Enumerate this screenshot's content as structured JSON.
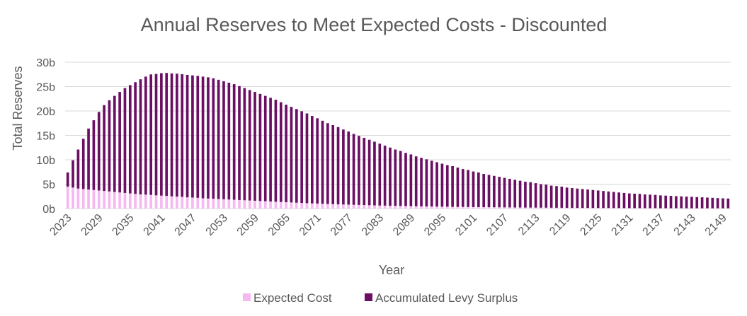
{
  "chart_data": {
    "type": "bar",
    "stacked": true,
    "title": "Annual Reserves to Meet Expected Costs - Discounted",
    "xlabel": "Year",
    "ylabel": "Total Reserves",
    "ylim": [
      0,
      30
    ],
    "y_unit": "b",
    "yticks": [
      "0b",
      "5b",
      "10b",
      "15b",
      "20b",
      "25b",
      "30b"
    ],
    "x_start": 2023,
    "x_end": 2150,
    "xticks": [
      "2023",
      "2029",
      "2035",
      "2041",
      "2047",
      "2053",
      "2059",
      "2065",
      "2071",
      "2077",
      "2083",
      "2089",
      "2095",
      "2101",
      "2107",
      "2113",
      "2119",
      "2125",
      "2131",
      "2137",
      "2143",
      "2149"
    ],
    "grid": true,
    "legend_position": "bottom",
    "series": [
      {
        "name": "Expected Cost",
        "color": "#f5b8f0",
        "values": [
          4.5,
          4.3,
          4.1,
          4.0,
          3.9,
          3.8,
          3.7,
          3.6,
          3.5,
          3.4,
          3.3,
          3.2,
          3.1,
          3.0,
          2.9,
          2.85,
          2.8,
          2.7,
          2.65,
          2.6,
          2.5,
          2.45,
          2.4,
          2.3,
          2.25,
          2.2,
          2.1,
          2.05,
          2.0,
          1.95,
          1.9,
          1.85,
          1.8,
          1.75,
          1.7,
          1.65,
          1.6,
          1.55,
          1.5,
          1.45,
          1.4,
          1.35,
          1.3,
          1.25,
          1.2,
          1.15,
          1.1,
          1.06,
          1.02,
          0.98,
          0.94,
          0.9,
          0.86,
          0.83,
          0.8,
          0.77,
          0.74,
          0.71,
          0.68,
          0.65,
          0.62,
          0.6,
          0.57,
          0.55,
          0.53,
          0.51,
          0.49,
          0.47,
          0.45,
          0.43,
          0.41,
          0.4,
          0.38,
          0.37,
          0.35,
          0.34,
          0.33,
          0.31,
          0.3,
          0.29,
          0.28,
          0.27,
          0.26,
          0.25,
          0.24,
          0.23,
          0.22,
          0.21,
          0.2,
          0.2,
          0.19,
          0.18,
          0.18,
          0.17,
          0.16,
          0.16,
          0.15,
          0.15,
          0.14,
          0.14,
          0.13,
          0.13,
          0.12,
          0.12,
          0.12,
          0.11,
          0.11,
          0.1,
          0.1,
          0.1,
          0.1,
          0.09,
          0.09,
          0.09,
          0.08,
          0.08,
          0.08,
          0.08,
          0.08,
          0.07,
          0.07,
          0.07,
          0.07,
          0.07,
          0.06,
          0.06,
          0.06,
          0.06
        ]
      },
      {
        "name": "Accumulated Levy Surplus",
        "color": "#6a0f63",
        "values": [
          2.9,
          5.6,
          8.0,
          10.3,
          12.5,
          14.3,
          16.1,
          17.6,
          18.7,
          19.7,
          20.6,
          21.5,
          22.2,
          22.9,
          23.6,
          24.2,
          24.7,
          24.9,
          25.1,
          25.2,
          25.2,
          25.2,
          25.15,
          25.1,
          25.05,
          25.0,
          24.95,
          24.85,
          24.7,
          24.45,
          24.2,
          23.95,
          23.7,
          23.35,
          23.0,
          22.65,
          22.3,
          21.95,
          21.6,
          21.25,
          20.9,
          20.45,
          20.0,
          19.6,
          19.2,
          18.8,
          18.4,
          17.92,
          17.48,
          17.02,
          16.56,
          16.2,
          15.84,
          15.37,
          15.0,
          14.53,
          14.16,
          13.79,
          13.42,
          13.05,
          12.68,
          12.3,
          11.93,
          11.55,
          11.27,
          10.89,
          10.61,
          10.23,
          9.95,
          9.67,
          9.39,
          9.1,
          8.82,
          8.53,
          8.35,
          8.06,
          7.77,
          7.59,
          7.3,
          7.11,
          6.82,
          6.63,
          6.44,
          6.25,
          6.06,
          5.87,
          5.68,
          5.49,
          5.3,
          5.2,
          5.01,
          4.82,
          4.72,
          4.53,
          4.44,
          4.34,
          4.15,
          4.05,
          3.96,
          3.86,
          3.77,
          3.67,
          3.58,
          3.48,
          3.38,
          3.29,
          3.19,
          3.1,
          3.0,
          2.95,
          2.9,
          2.81,
          2.76,
          2.71,
          2.62,
          2.57,
          2.52,
          2.47,
          2.42,
          2.38,
          2.33,
          2.28,
          2.23,
          2.18,
          2.14,
          2.09,
          2.04,
          1.99
        ]
      }
    ]
  }
}
